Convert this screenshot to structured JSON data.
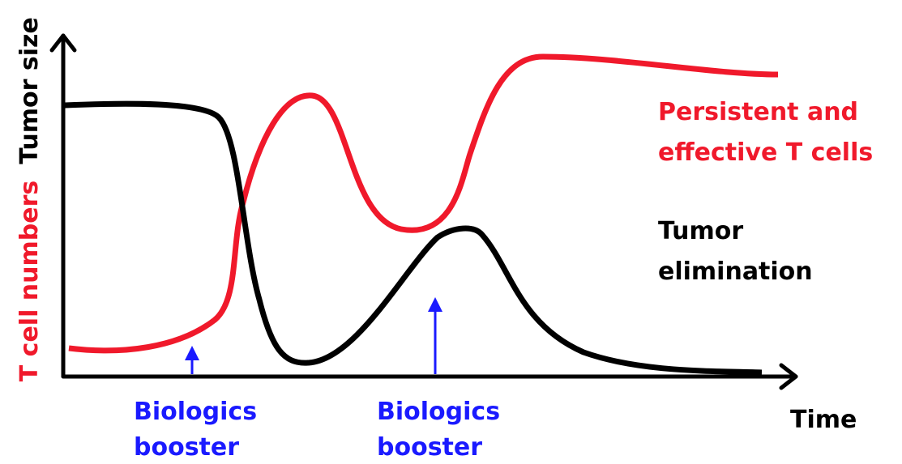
{
  "axes": {
    "y_label_top": "Tumor size",
    "y_label_bottom": "T cell numbers",
    "x_label": "Time"
  },
  "curves": [
    {
      "label_lines": [
        "Persistent and",
        "effective T cells"
      ]
    },
    {
      "label_lines": [
        "Tumor",
        "elimination"
      ]
    }
  ],
  "annotations": [
    {
      "lines": [
        "Biologics",
        "booster"
      ]
    },
    {
      "lines": [
        "Biologics",
        "booster"
      ]
    }
  ]
}
